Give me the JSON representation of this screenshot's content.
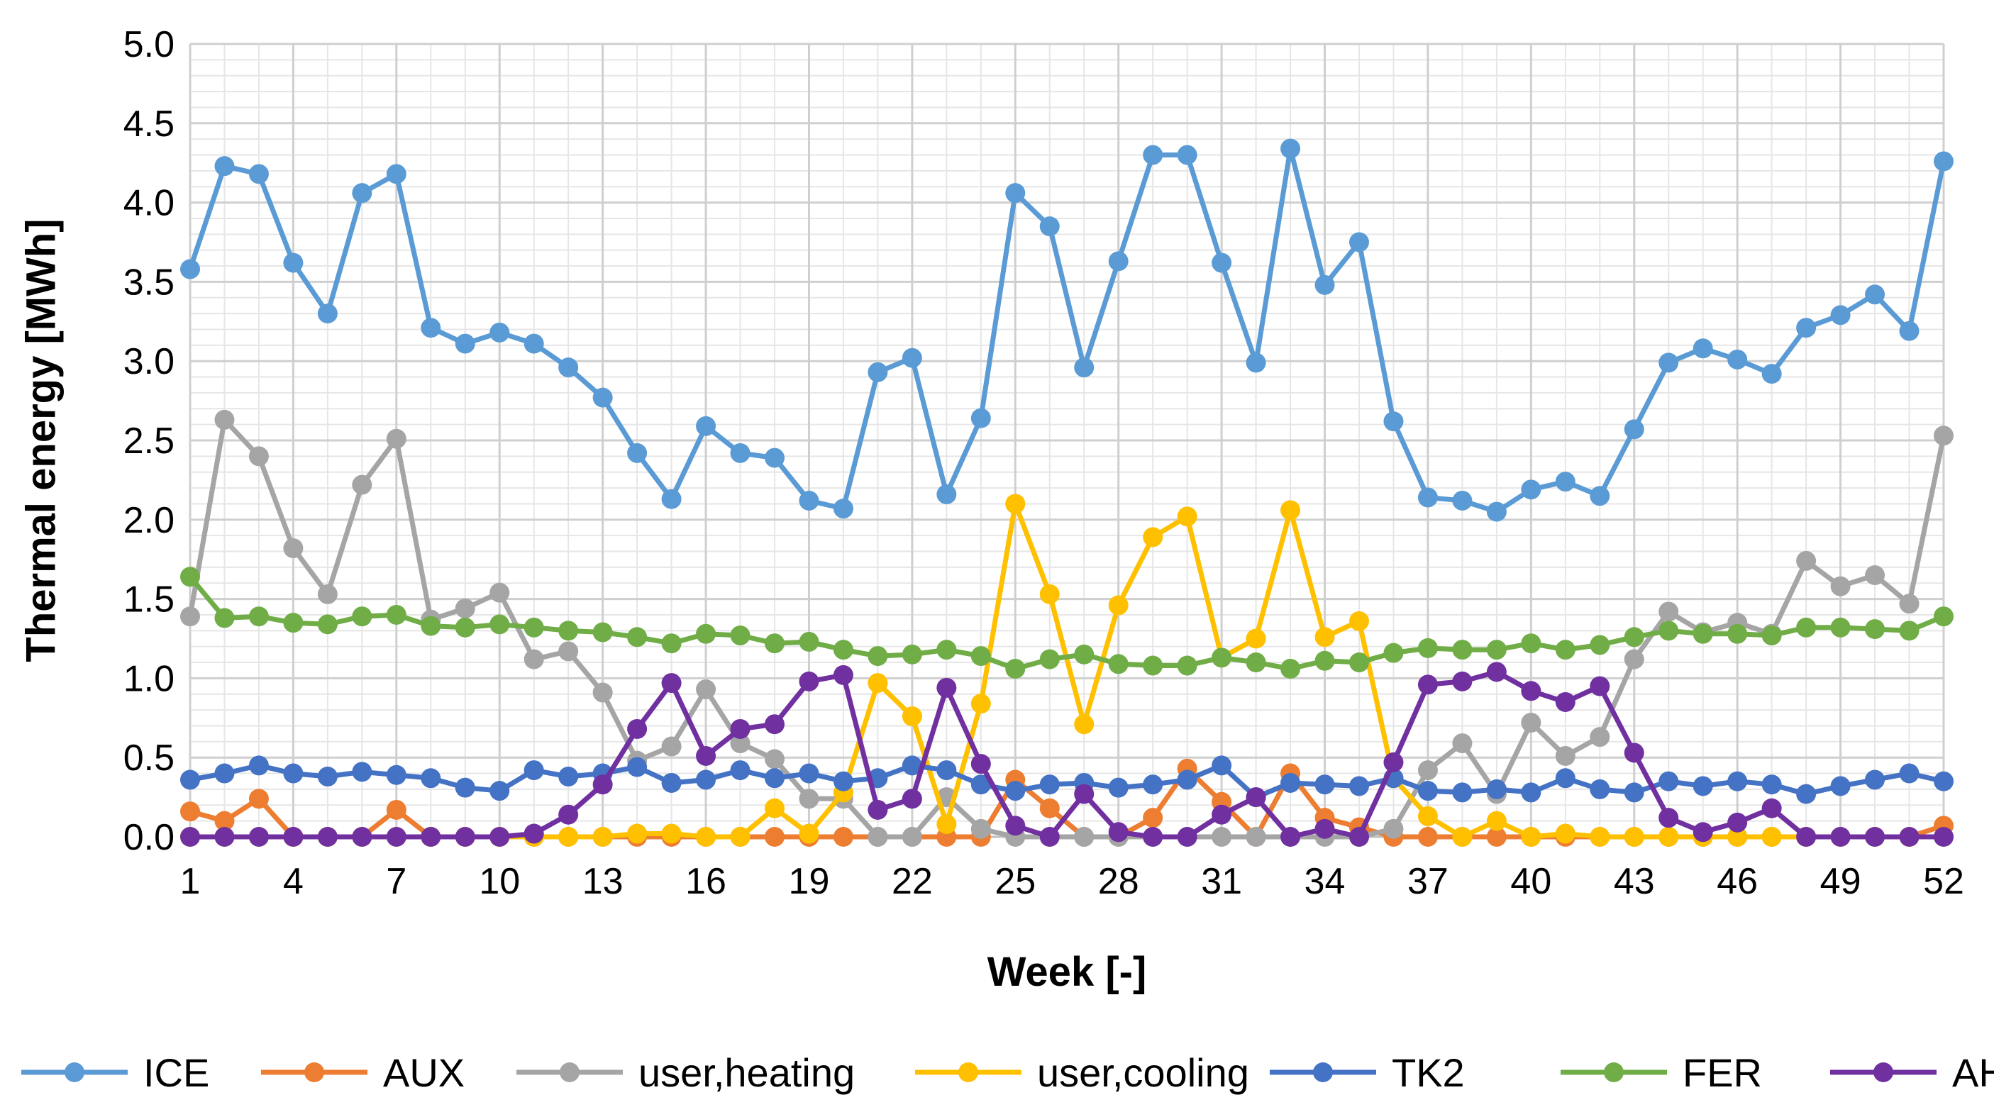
{
  "chart_data": {
    "type": "line",
    "title": "",
    "xlabel": "Week [-]",
    "ylabel": "Thermal energy [MWh]",
    "xlim": [
      1,
      52
    ],
    "ylim": [
      0,
      5
    ],
    "x_ticks": [
      1,
      4,
      7,
      10,
      13,
      16,
      19,
      22,
      25,
      28,
      31,
      34,
      37,
      40,
      43,
      46,
      49,
      52
    ],
    "y_ticks": [
      "0.0",
      "0.5",
      "1.0",
      "1.5",
      "2.0",
      "2.5",
      "3.0",
      "3.5",
      "4.0",
      "4.5",
      "5.0"
    ],
    "grid": true,
    "legend_position": "bottom",
    "x": [
      1,
      2,
      3,
      4,
      5,
      6,
      7,
      8,
      9,
      10,
      11,
      12,
      13,
      14,
      15,
      16,
      17,
      18,
      19,
      20,
      21,
      22,
      23,
      24,
      25,
      26,
      27,
      28,
      29,
      30,
      31,
      32,
      33,
      34,
      35,
      36,
      37,
      38,
      39,
      40,
      41,
      42,
      43,
      44,
      45,
      46,
      47,
      48,
      49,
      50,
      51,
      52
    ],
    "series": [
      {
        "name": "ICE",
        "color": "#5B9BD5",
        "values": [
          3.58,
          4.23,
          4.18,
          3.62,
          3.3,
          4.06,
          4.18,
          3.21,
          3.11,
          3.18,
          3.11,
          2.96,
          2.77,
          2.42,
          2.13,
          2.59,
          2.42,
          2.39,
          2.12,
          2.07,
          2.93,
          3.02,
          2.16,
          2.64,
          4.06,
          3.85,
          2.96,
          3.63,
          4.3,
          4.3,
          3.62,
          2.99,
          4.34,
          3.48,
          3.75,
          2.62,
          2.14,
          2.12,
          2.05,
          2.19,
          2.24,
          2.15,
          2.57,
          2.99,
          3.08,
          3.01,
          2.92,
          3.21,
          3.29,
          3.42,
          3.19,
          4.26
        ]
      },
      {
        "name": "AUX",
        "color": "#ED7D31",
        "values": [
          0.16,
          0.1,
          0.24,
          0,
          0,
          0,
          0.17,
          0,
          0,
          0,
          0,
          0,
          0,
          0,
          0,
          0,
          0,
          0,
          0,
          0,
          0,
          0,
          0,
          0,
          0.36,
          0.18,
          0,
          0,
          0.12,
          0.43,
          0.22,
          0,
          0.4,
          0.12,
          0.06,
          0,
          0,
          0,
          0,
          0,
          0,
          0,
          0,
          0,
          0,
          0,
          0,
          0,
          0,
          0,
          0,
          0.07
        ]
      },
      {
        "name": "user,heating",
        "color": "#A5A5A5",
        "values": [
          1.39,
          2.63,
          2.4,
          1.82,
          1.53,
          2.22,
          2.51,
          1.37,
          1.44,
          1.54,
          1.12,
          1.17,
          0.91,
          0.48,
          0.57,
          0.93,
          0.59,
          0.49,
          0.24,
          0.24,
          0,
          0,
          0.25,
          0.05,
          0,
          0,
          0,
          0,
          0,
          0,
          0,
          0,
          0,
          0,
          0,
          0.05,
          0.42,
          0.59,
          0.27,
          0.72,
          0.51,
          0.63,
          1.12,
          1.42,
          1.29,
          1.35,
          1.28,
          1.74,
          1.58,
          1.65,
          1.47,
          2.53
        ]
      },
      {
        "name": "user,cooling",
        "color": "#FFC000",
        "values": [
          0,
          0,
          0,
          0,
          0,
          0,
          0,
          0,
          0,
          0,
          0,
          0,
          0,
          0.02,
          0.02,
          0,
          0,
          0.18,
          0.02,
          0.28,
          0.97,
          0.76,
          0.08,
          0.84,
          2.1,
          1.53,
          0.71,
          1.46,
          1.89,
          2.02,
          1.13,
          1.25,
          2.06,
          1.26,
          1.36,
          0.37,
          0.13,
          0,
          0.1,
          0,
          0.02,
          0,
          0,
          0,
          0,
          0,
          0,
          0,
          0,
          0,
          0,
          0
        ]
      },
      {
        "name": "TK2",
        "color": "#4472C4",
        "values": [
          0.36,
          0.4,
          0.45,
          0.4,
          0.38,
          0.41,
          0.39,
          0.37,
          0.31,
          0.29,
          0.42,
          0.38,
          0.4,
          0.44,
          0.34,
          0.36,
          0.42,
          0.37,
          0.4,
          0.35,
          0.37,
          0.45,
          0.42,
          0.33,
          0.29,
          0.33,
          0.34,
          0.31,
          0.33,
          0.36,
          0.45,
          0.25,
          0.34,
          0.33,
          0.32,
          0.37,
          0.29,
          0.28,
          0.3,
          0.28,
          0.37,
          0.3,
          0.28,
          0.35,
          0.32,
          0.35,
          0.33,
          0.27,
          0.32,
          0.36,
          0.4,
          0.35
        ]
      },
      {
        "name": "FER",
        "color": "#70AD47",
        "values": [
          1.64,
          1.38,
          1.39,
          1.35,
          1.34,
          1.39,
          1.4,
          1.33,
          1.32,
          1.34,
          1.32,
          1.3,
          1.29,
          1.26,
          1.22,
          1.28,
          1.27,
          1.22,
          1.23,
          1.18,
          1.14,
          1.15,
          1.18,
          1.14,
          1.06,
          1.12,
          1.15,
          1.09,
          1.08,
          1.08,
          1.13,
          1.1,
          1.06,
          1.11,
          1.1,
          1.16,
          1.19,
          1.18,
          1.18,
          1.22,
          1.18,
          1.21,
          1.26,
          1.3,
          1.28,
          1.28,
          1.27,
          1.32,
          1.32,
          1.31,
          1.3,
          1.39
        ]
      },
      {
        "name": "AHX",
        "color": "#7030A0",
        "values": [
          0,
          0,
          0,
          0,
          0,
          0,
          0,
          0,
          0,
          0,
          0.02,
          0.14,
          0.33,
          0.68,
          0.97,
          0.51,
          0.68,
          0.71,
          0.98,
          1.02,
          0.17,
          0.24,
          0.94,
          0.46,
          0.07,
          0,
          0.27,
          0.03,
          0,
          0,
          0.14,
          0.25,
          0,
          0.05,
          0,
          0.47,
          0.96,
          0.98,
          1.04,
          0.92,
          0.85,
          0.95,
          0.53,
          0.12,
          0.03,
          0.09,
          0.18,
          0,
          0,
          0,
          0,
          0
        ]
      }
    ]
  }
}
